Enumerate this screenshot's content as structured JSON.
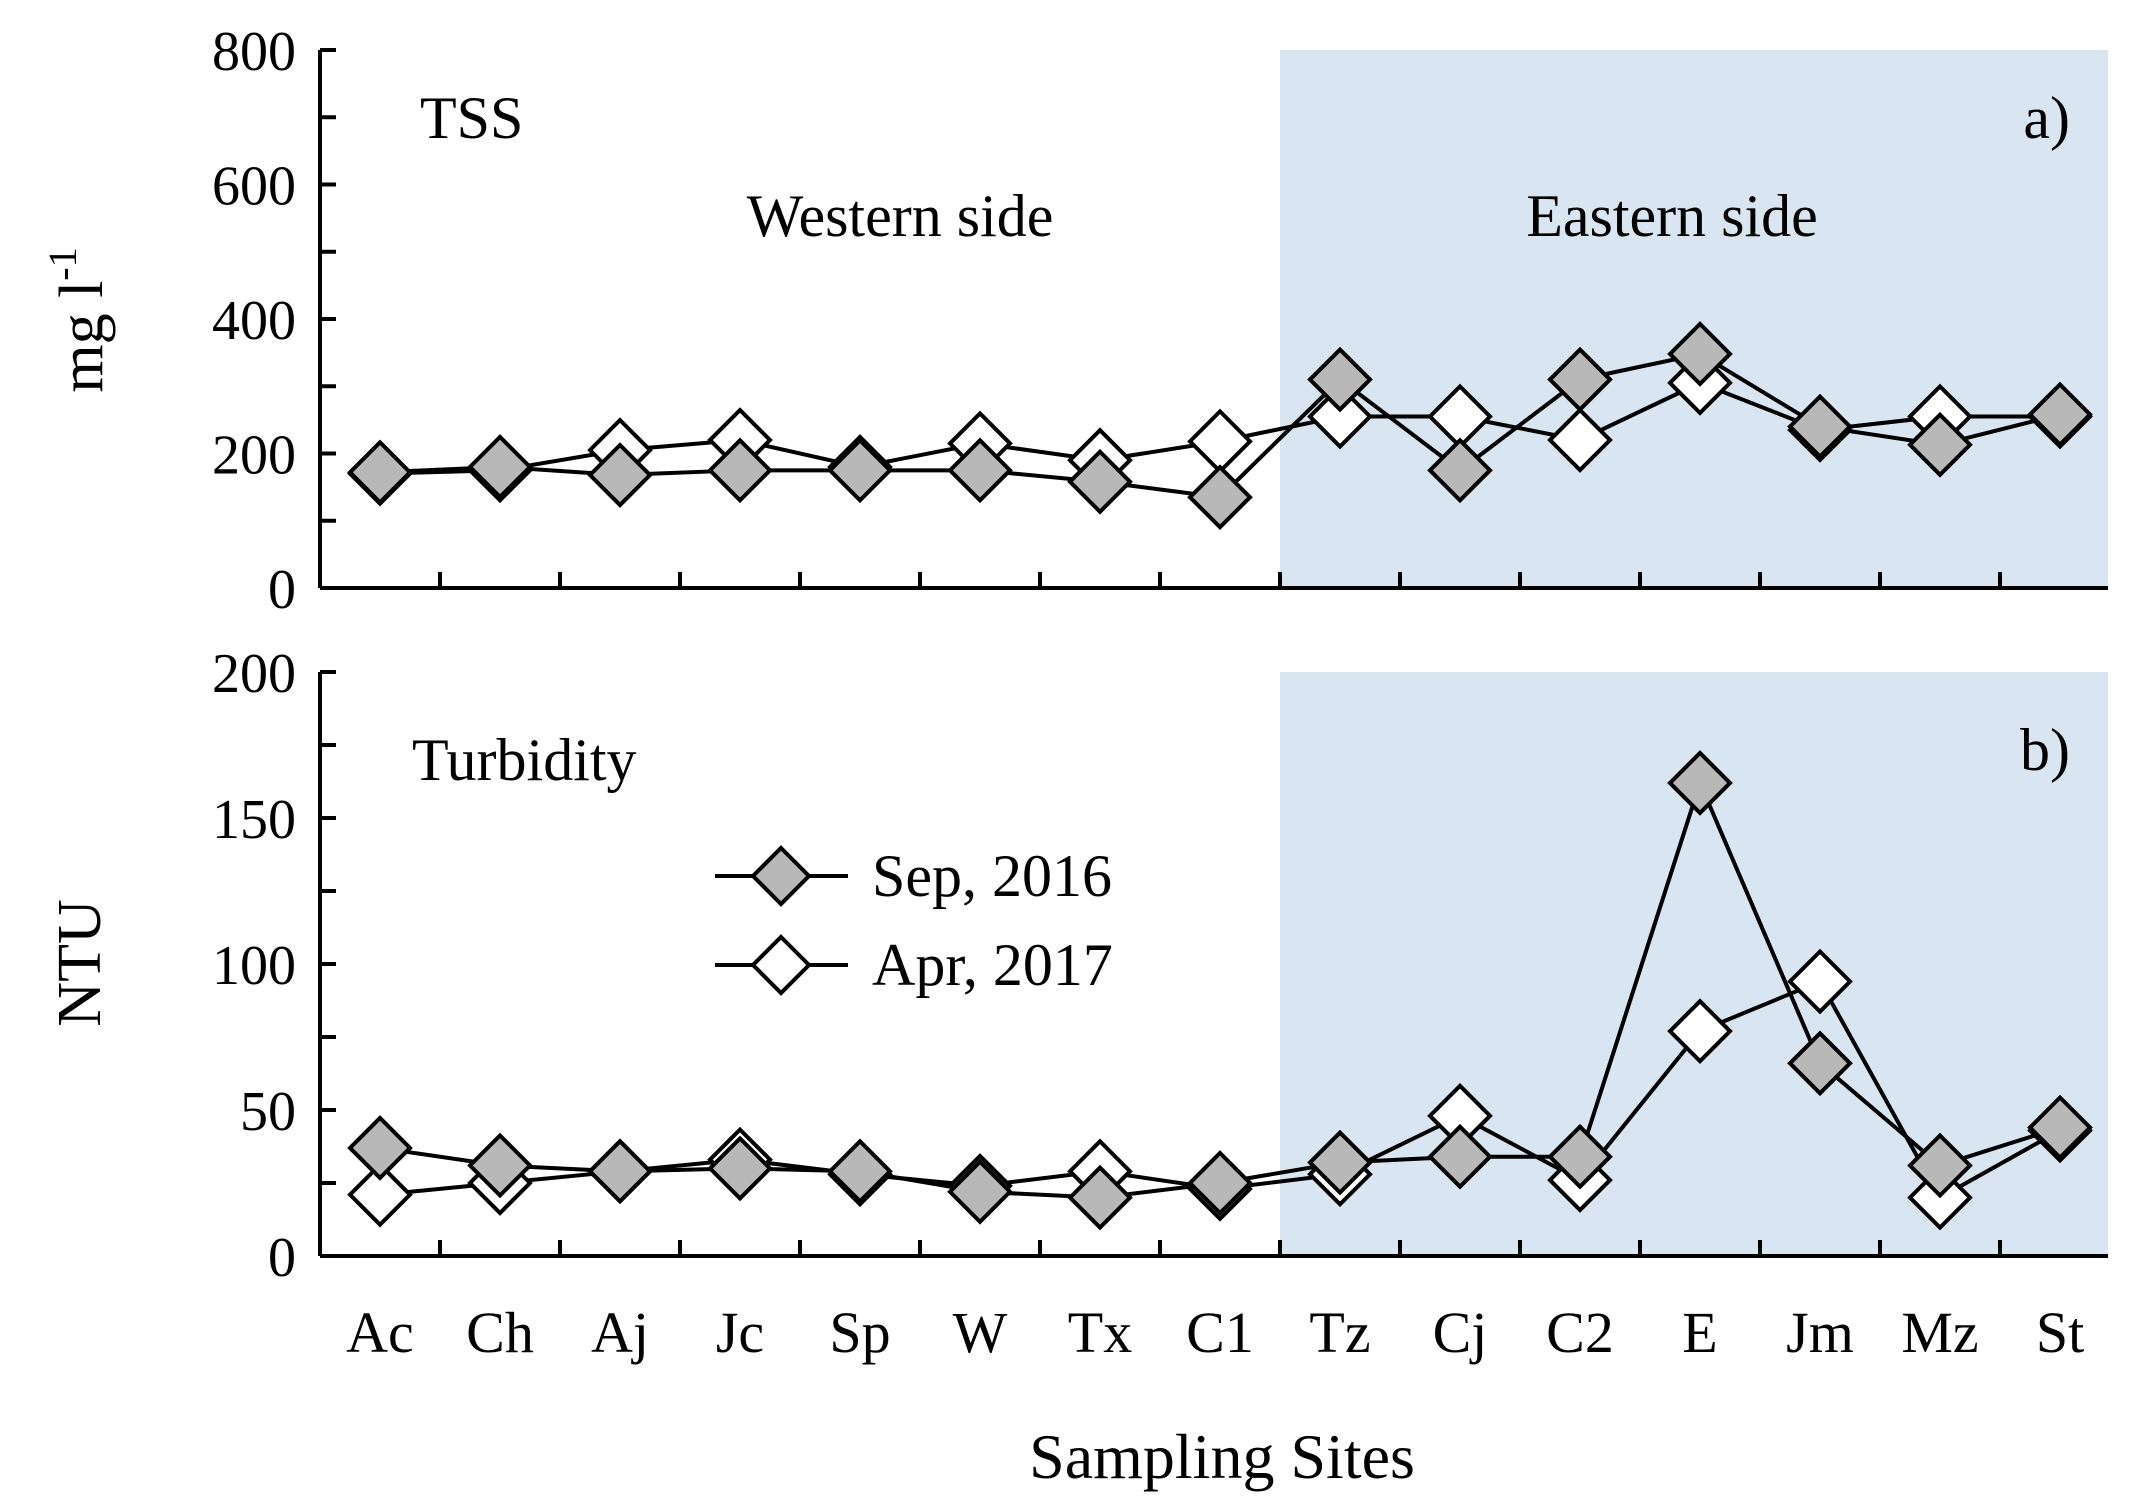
{
  "colors": {
    "shade": "#d9e5f0",
    "sep_marker": "#b8b8b8",
    "apr_marker": "#ffffff",
    "line": "#000000"
  },
  "chart_data": [
    {
      "type": "line",
      "panel_label": "a)",
      "title": "TSS",
      "ylabel": "mg l-1",
      "ylabel_main": "mg l",
      "ylabel_sup": "-1",
      "ylim": [
        0,
        800
      ],
      "yticks": [
        0,
        200,
        400,
        600,
        800
      ],
      "shaded_from_category": "C1",
      "region_labels": {
        "west": "Western side",
        "east": "Eastern side"
      },
      "categories": [
        "Ac",
        "Ch",
        "Aj",
        "Jc",
        "Sp",
        "W",
        "Tx",
        "C1",
        "Tz",
        "Cj",
        "C2",
        "E",
        "Jm",
        "Mz",
        "St"
      ],
      "series": [
        {
          "name": "Sep, 2016",
          "values": [
            172,
            180,
            168,
            175,
            175,
            175,
            158,
            135,
            310,
            175,
            310,
            348,
            240,
            213,
            258
          ]
        },
        {
          "name": "Apr, 2017",
          "values": [
            170,
            175,
            205,
            220,
            180,
            215,
            190,
            218,
            255,
            255,
            220,
            305,
            235,
            255,
            255
          ]
        }
      ]
    },
    {
      "type": "line",
      "panel_label": "b)",
      "title": "Turbidity",
      "ylabel": "NTU",
      "ylim": [
        0,
        200
      ],
      "yticks": [
        0,
        50,
        100,
        150,
        200
      ],
      "shaded_from_category": "C1",
      "xlabel": "Sampling Sites",
      "categories": [
        "Ac",
        "Ch",
        "Aj",
        "Jc",
        "Sp",
        "W",
        "Tx",
        "C1",
        "Tz",
        "Cj",
        "C2",
        "E",
        "Jm",
        "Mz",
        "St"
      ],
      "series": [
        {
          "name": "Sep, 2016",
          "values": [
            37,
            31,
            29,
            30,
            29,
            22,
            20,
            25,
            32,
            34,
            34,
            162,
            66,
            31,
            44
          ]
        },
        {
          "name": "Apr, 2017",
          "values": [
            21,
            25,
            29,
            33,
            28,
            24,
            29,
            23,
            28,
            48,
            26,
            77,
            94,
            20,
            43
          ]
        }
      ]
    }
  ]
}
